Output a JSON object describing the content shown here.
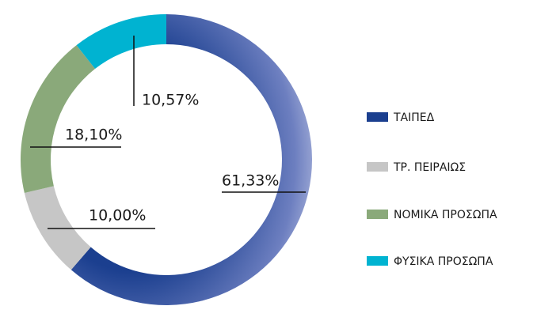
{
  "chart_data": {
    "type": "donut",
    "categories": [
      "ΤΑΙΠΕΔ",
      "ΤΡ. ΠΕΙΡΑΙΩΣ",
      "ΝΟΜΙΚΑ ΠΡΟΣΩΠΑ",
      "ΦΥΣΙΚΑ ΠΡΟΣΩΠΑ"
    ],
    "values": [
      61.33,
      10.0,
      18.1,
      10.57
    ],
    "value_labels": [
      "61,33%",
      "10,00%",
      "18,10%",
      "10,57%"
    ],
    "colors": [
      "#1b3f8f",
      "#c6c6c6",
      "#8aa97a",
      "#00b3d1"
    ],
    "legend": "right"
  }
}
